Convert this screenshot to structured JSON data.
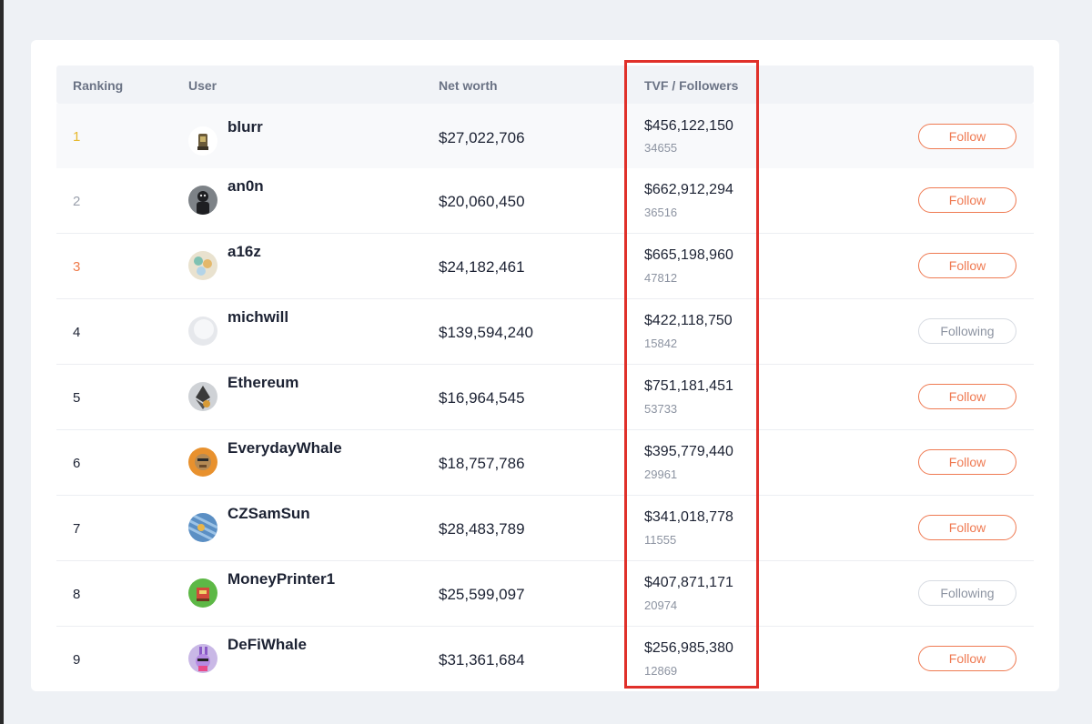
{
  "table": {
    "headers": {
      "ranking": "Ranking",
      "user": "User",
      "networth": "Net worth",
      "tvf": "TVF / Followers"
    },
    "rows": [
      {
        "rank": "1",
        "user": "blurr",
        "networth": "$27,022,706",
        "tvf": "$456,122,150",
        "followers": "34655",
        "action": "Follow"
      },
      {
        "rank": "2",
        "user": "an0n",
        "networth": "$20,060,450",
        "tvf": "$662,912,294",
        "followers": "36516",
        "action": "Follow"
      },
      {
        "rank": "3",
        "user": "a16z",
        "networth": "$24,182,461",
        "tvf": "$665,198,960",
        "followers": "47812",
        "action": "Follow"
      },
      {
        "rank": "4",
        "user": "michwill",
        "networth": "$139,594,240",
        "tvf": "$422,118,750",
        "followers": "15842",
        "action": "Following"
      },
      {
        "rank": "5",
        "user": "Ethereum",
        "networth": "$16,964,545",
        "tvf": "$751,181,451",
        "followers": "53733",
        "action": "Follow"
      },
      {
        "rank": "6",
        "user": "EverydayWhale",
        "networth": "$18,757,786",
        "tvf": "$395,779,440",
        "followers": "29961",
        "action": "Follow"
      },
      {
        "rank": "7",
        "user": "CZSamSun",
        "networth": "$28,483,789",
        "tvf": "$341,018,778",
        "followers": "11555",
        "action": "Follow"
      },
      {
        "rank": "8",
        "user": "MoneyPrinter1",
        "networth": "$25,599,097",
        "tvf": "$407,871,171",
        "followers": "20974",
        "action": "Following"
      },
      {
        "rank": "9",
        "user": "DeFiWhale",
        "networth": "$31,361,684",
        "tvf": "$256,985,380",
        "followers": "12869",
        "action": "Follow"
      }
    ]
  },
  "colors": {
    "follow": "#ef7a52",
    "highlight": "#e0302a",
    "rank_gold": "#e7b92e",
    "rank_silver": "#9ba1ad",
    "rank_bronze": "#ef7a4a"
  }
}
